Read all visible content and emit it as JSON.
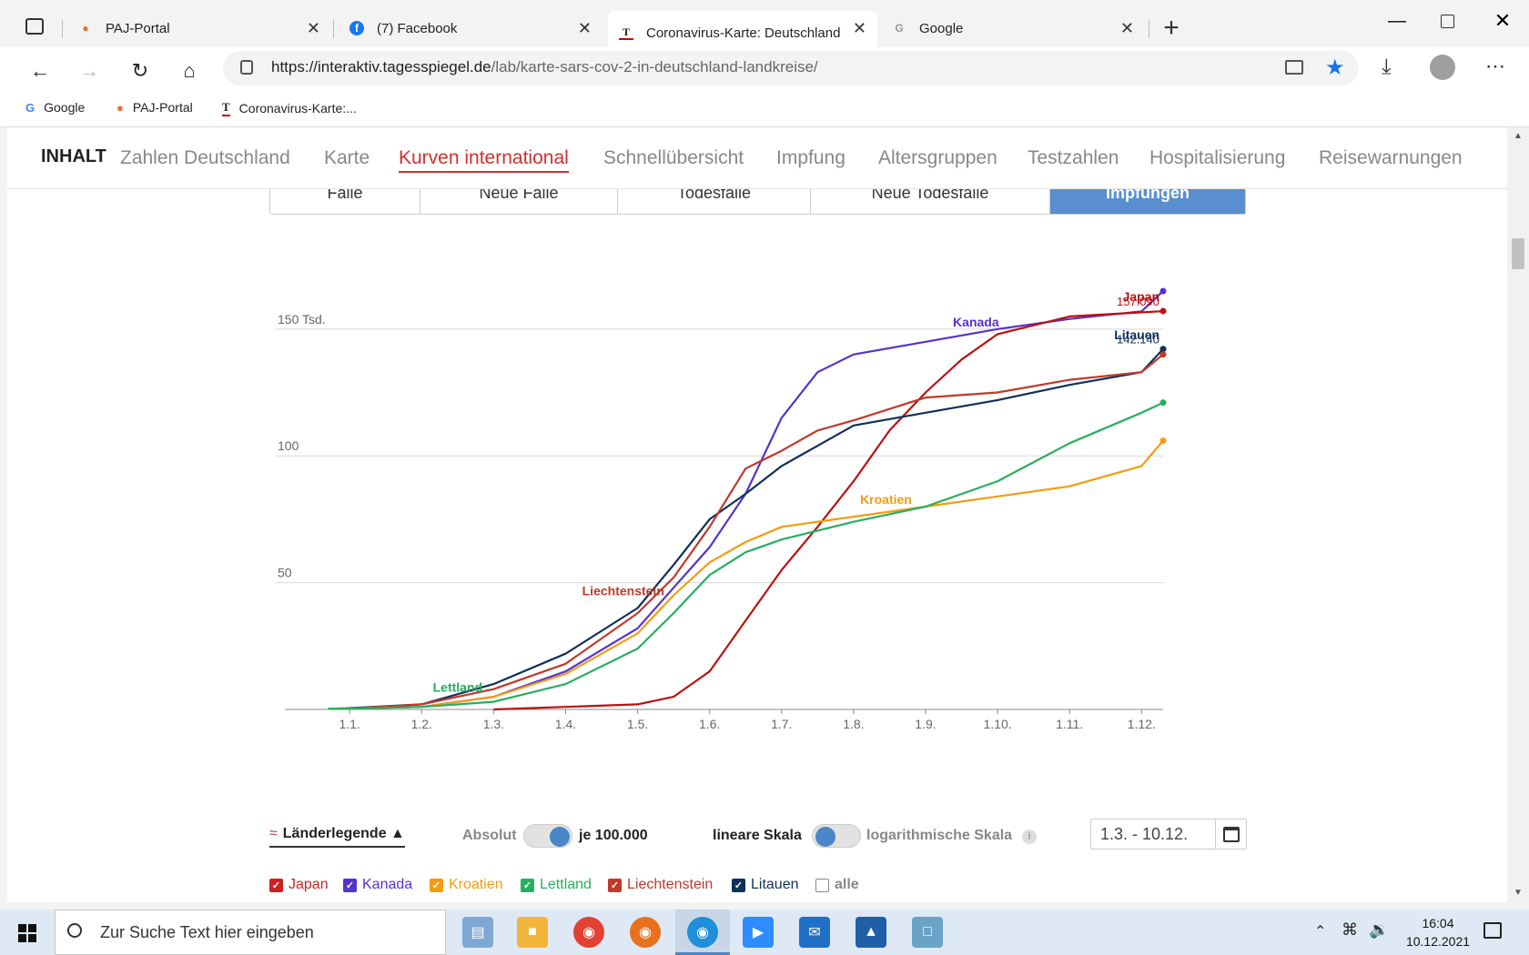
{
  "browser": {
    "tabs": [
      {
        "title": "PAJ-Portal",
        "favicon": "map-pin-icon"
      },
      {
        "title": "(7) Facebook",
        "favicon": "facebook-icon"
      },
      {
        "title": "Coronavirus-Karte: Deutschland",
        "favicon": "tagesspiegel-icon",
        "active": true
      },
      {
        "title": "Google",
        "favicon": "google-icon"
      }
    ],
    "url_host": "https://interaktiv.tagesspiegel.de",
    "url_path": "/lab/karte-sars-cov-2-in-deutschland-landkreise/",
    "bookmarks": [
      {
        "label": "Google",
        "icon": "google-icon"
      },
      {
        "label": "PAJ-Portal",
        "icon": "map-pin-icon"
      },
      {
        "label": "Coronavirus-Karte:...",
        "icon": "tagesspiegel-icon"
      }
    ]
  },
  "nav": {
    "inhalt": "INHALT",
    "items": [
      "Zahlen Deutschland",
      "Karte",
      "Kurven international",
      "Schnellübersicht",
      "Impfung",
      "Altersgruppen",
      "Testzahlen",
      "Hospitalisierung",
      "Reisewarnungen"
    ],
    "active": "Kurven international"
  },
  "mode_tabs": [
    "Fälle",
    "Neue Fälle",
    "Todesfälle",
    "Neue Todesfälle",
    "Impfungen"
  ],
  "mode_active": "Impfungen",
  "chart_data": {
    "type": "line",
    "x_ticks": [
      "1.1.",
      "1.2.",
      "1.3.",
      "1.4.",
      "1.5.",
      "1.6.",
      "1.7.",
      "1.8.",
      "1.9.",
      "1.10.",
      "1.11.",
      "1.12."
    ],
    "y_ticks": [
      {
        "value": 50,
        "label": "50"
      },
      {
        "value": 100,
        "label": "100"
      },
      {
        "value": 150,
        "label": "150 Tsd."
      }
    ],
    "ylim": [
      0,
      165
    ],
    "grid": true,
    "series": [
      {
        "name": "Kanada",
        "color": "#5533cc",
        "points": [
          [
            -0.3,
            0.2
          ],
          [
            0,
            0.3
          ],
          [
            1,
            1
          ],
          [
            2,
            5
          ],
          [
            3,
            15
          ],
          [
            4,
            32
          ],
          [
            4.5,
            48
          ],
          [
            5,
            64
          ],
          [
            5.5,
            85
          ],
          [
            6,
            115
          ],
          [
            6.5,
            133
          ],
          [
            7,
            140
          ],
          [
            8,
            145
          ],
          [
            9,
            150
          ],
          [
            10,
            154
          ],
          [
            11,
            157
          ],
          [
            11.3,
            165
          ]
        ]
      },
      {
        "name": "Japan",
        "color": "#bb1111",
        "points": [
          [
            2,
            0
          ],
          [
            3,
            1
          ],
          [
            4,
            2
          ],
          [
            4.5,
            5
          ],
          [
            5,
            15
          ],
          [
            5.5,
            35
          ],
          [
            6,
            55
          ],
          [
            6.5,
            72
          ],
          [
            7,
            90
          ],
          [
            7.5,
            110
          ],
          [
            8,
            125
          ],
          [
            8.5,
            138
          ],
          [
            9,
            148
          ],
          [
            10,
            155
          ],
          [
            11.3,
            157.09
          ]
        ],
        "label": "157.090"
      },
      {
        "name": "Litauen",
        "color": "#10305a",
        "points": [
          [
            -0.3,
            0.2
          ],
          [
            0,
            0.5
          ],
          [
            1,
            2
          ],
          [
            2,
            10
          ],
          [
            3,
            22
          ],
          [
            4,
            40
          ],
          [
            4.5,
            57
          ],
          [
            5,
            75
          ],
          [
            5.5,
            85
          ],
          [
            6,
            96
          ],
          [
            7,
            112
          ],
          [
            8,
            117
          ],
          [
            9,
            122
          ],
          [
            10,
            128
          ],
          [
            11,
            133
          ],
          [
            11.3,
            142.14
          ]
        ],
        "label": "142.140"
      },
      {
        "name": "Liechtenstein",
        "color": "#c0392b",
        "points": [
          [
            -0.3,
            0.2
          ],
          [
            0,
            0.3
          ],
          [
            1,
            2
          ],
          [
            2,
            8
          ],
          [
            3,
            18
          ],
          [
            4,
            38
          ],
          [
            4.5,
            52
          ],
          [
            5,
            72
          ],
          [
            5.5,
            95
          ],
          [
            6,
            102
          ],
          [
            6.5,
            110
          ],
          [
            7,
            114
          ],
          [
            8,
            123
          ],
          [
            9,
            125
          ],
          [
            10,
            130
          ],
          [
            11,
            133
          ],
          [
            11.3,
            140
          ]
        ]
      },
      {
        "name": "Kroatien",
        "color": "#f39c12",
        "points": [
          [
            -0.3,
            0.2
          ],
          [
            0,
            0.3
          ],
          [
            1,
            1
          ],
          [
            2,
            5
          ],
          [
            3,
            14
          ],
          [
            4,
            30
          ],
          [
            4.5,
            45
          ],
          [
            5,
            58
          ],
          [
            5.5,
            66
          ],
          [
            6,
            72
          ],
          [
            7,
            76
          ],
          [
            8,
            80
          ],
          [
            9,
            84
          ],
          [
            10,
            88
          ],
          [
            11,
            96
          ],
          [
            11.3,
            106
          ]
        ]
      },
      {
        "name": "Lettland",
        "color": "#27ae60",
        "points": [
          [
            -0.3,
            0.2
          ],
          [
            0,
            0.3
          ],
          [
            1,
            1
          ],
          [
            2,
            3
          ],
          [
            3,
            10
          ],
          [
            4,
            24
          ],
          [
            4.5,
            38
          ],
          [
            5,
            53
          ],
          [
            5.5,
            62
          ],
          [
            6,
            67
          ],
          [
            7,
            74
          ],
          [
            8,
            80
          ],
          [
            9,
            90
          ],
          [
            10,
            105
          ],
          [
            11,
            117
          ],
          [
            11.3,
            121
          ]
        ]
      }
    ],
    "series_labels": [
      {
        "series": "Japan",
        "text": "Japan"
      },
      {
        "series": "Litauen",
        "text": "Litauen"
      },
      {
        "series": "Kanada",
        "text": "Kanada"
      },
      {
        "series": "Kroatien",
        "text": "Kroatien"
      },
      {
        "series": "Liechtenstein",
        "text": "Liechtenstein"
      },
      {
        "series": "Lettland",
        "text": "Lettland"
      }
    ]
  },
  "controls": {
    "legend_label": "Länderlegende ▲",
    "absolut": "Absolut",
    "je100k": "je 100.000",
    "linear": "lineare Skala",
    "log": "logarithmische Skala",
    "daterange": "1.3. - 10.12.",
    "checkboxes": [
      {
        "label": "Japan",
        "color": "#cc2222",
        "checked": true
      },
      {
        "label": "Kanada",
        "color": "#5533cc",
        "checked": true
      },
      {
        "label": "Kroatien",
        "color": "#f39c12",
        "checked": true
      },
      {
        "label": "Lettland",
        "color": "#27ae60",
        "checked": true
      },
      {
        "label": "Liechtenstein",
        "color": "#c0392b",
        "checked": true
      },
      {
        "label": "Litauen",
        "color": "#10305a",
        "checked": true
      },
      {
        "label": "alle",
        "color": "#888888",
        "checked": false
      }
    ]
  },
  "taskbar": {
    "search_placeholder": "Zur Suche Text hier eingeben",
    "time": "16:04",
    "date": "10.12.2021"
  }
}
